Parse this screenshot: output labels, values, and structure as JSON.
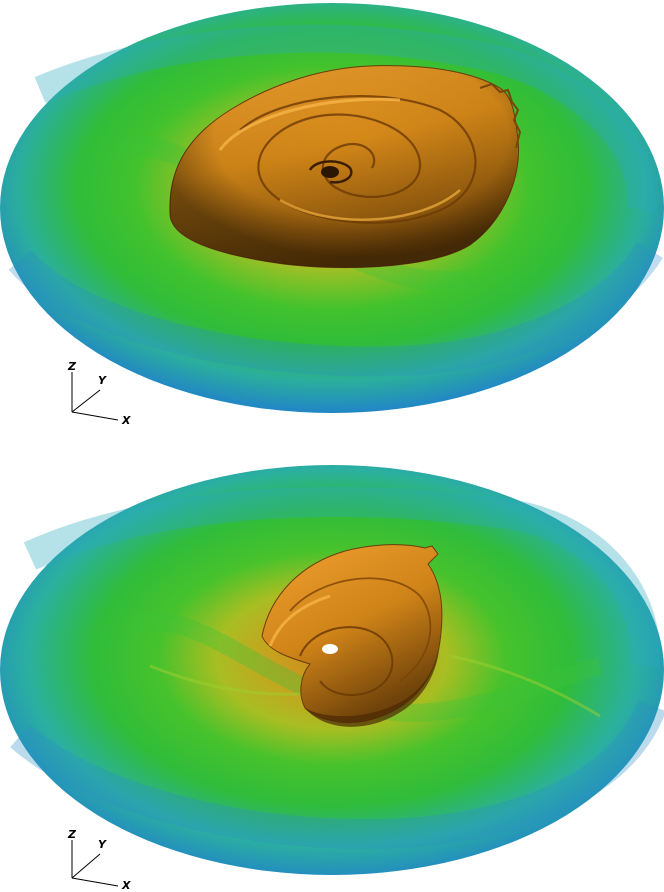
{
  "figure": {
    "panels": [
      {
        "id": "top",
        "axes": {
          "z_label": "Z",
          "y_label": "Y",
          "x_label": "X"
        }
      },
      {
        "id": "bottom",
        "axes": {
          "z_label": "Z",
          "y_label": "Y",
          "x_label": "X"
        }
      }
    ],
    "colors": {
      "outer_blue": "#1E5FC8",
      "cyan": "#2AB0B8",
      "green": "#34C232",
      "yellow_green": "#B8C020",
      "orange_surface": "#D68A1C",
      "surface_shadow": "#5A3508"
    }
  }
}
